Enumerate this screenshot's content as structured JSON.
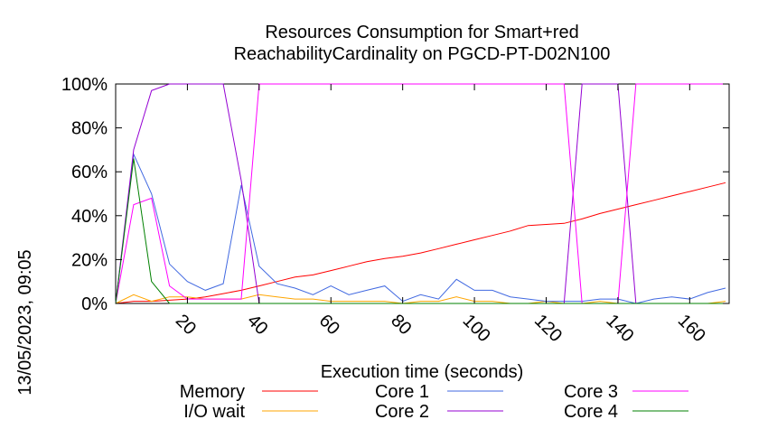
{
  "chart_data": {
    "type": "line",
    "title_lines": [
      "Resources Consumption for Smart+red",
      "ReachabilityCardinality on PGCD-PT-D02N100"
    ],
    "xlabel": "Execution time (seconds)",
    "ylabel": "",
    "side_label": "13/05/2023, 09:05",
    "xlim": [
      0,
      171
    ],
    "ylim": [
      0,
      100
    ],
    "x_ticks": [
      20,
      40,
      60,
      80,
      100,
      120,
      140,
      160
    ],
    "y_ticks": [
      0,
      20,
      40,
      60,
      80,
      100
    ],
    "y_tick_labels": [
      "0%",
      "20%",
      "40%",
      "60%",
      "80%",
      "100%"
    ],
    "grid": false,
    "legend_position": "bottom",
    "series": [
      {
        "name": "Memory",
        "color": "#ff0000",
        "points": [
          [
            0,
            0
          ],
          [
            5,
            1
          ],
          [
            10,
            1
          ],
          [
            15,
            1.5
          ],
          [
            20,
            2
          ],
          [
            25,
            3
          ],
          [
            30,
            4.5
          ],
          [
            35,
            6
          ],
          [
            40,
            8
          ],
          [
            45,
            10
          ],
          [
            50,
            12
          ],
          [
            55,
            13
          ],
          [
            60,
            15
          ],
          [
            65,
            17
          ],
          [
            70,
            19
          ],
          [
            75,
            20.5
          ],
          [
            80,
            21.5
          ],
          [
            85,
            23
          ],
          [
            90,
            25
          ],
          [
            95,
            27
          ],
          [
            100,
            29
          ],
          [
            105,
            31
          ],
          [
            110,
            33
          ],
          [
            115,
            35.5
          ],
          [
            120,
            36
          ],
          [
            125,
            36.5
          ],
          [
            130,
            38.5
          ],
          [
            135,
            41
          ],
          [
            140,
            43
          ],
          [
            145,
            45
          ],
          [
            150,
            47
          ],
          [
            155,
            49
          ],
          [
            160,
            51
          ],
          [
            165,
            53
          ],
          [
            170,
            55
          ]
        ]
      },
      {
        "name": "I/O wait",
        "color": "#ffa500",
        "points": [
          [
            0,
            0
          ],
          [
            5,
            4
          ],
          [
            10,
            1
          ],
          [
            15,
            3
          ],
          [
            20,
            3
          ],
          [
            25,
            2
          ],
          [
            30,
            2
          ],
          [
            35,
            2
          ],
          [
            40,
            4
          ],
          [
            45,
            3
          ],
          [
            50,
            2
          ],
          [
            55,
            2
          ],
          [
            60,
            1
          ],
          [
            65,
            1
          ],
          [
            70,
            1
          ],
          [
            75,
            1
          ],
          [
            80,
            0
          ],
          [
            85,
            1
          ],
          [
            90,
            1
          ],
          [
            95,
            3
          ],
          [
            100,
            1
          ],
          [
            105,
            1
          ],
          [
            110,
            0
          ],
          [
            115,
            0
          ],
          [
            120,
            1
          ],
          [
            125,
            0
          ],
          [
            130,
            0
          ],
          [
            135,
            1
          ],
          [
            140,
            0
          ],
          [
            145,
            0
          ],
          [
            150,
            0
          ],
          [
            155,
            0
          ],
          [
            160,
            0
          ],
          [
            165,
            0
          ],
          [
            170,
            1
          ]
        ]
      },
      {
        "name": "Core 1",
        "color": "#4169e1",
        "points": [
          [
            0,
            0
          ],
          [
            5,
            68
          ],
          [
            10,
            50
          ],
          [
            15,
            18
          ],
          [
            20,
            10
          ],
          [
            25,
            6
          ],
          [
            30,
            9
          ],
          [
            35,
            54
          ],
          [
            40,
            17
          ],
          [
            45,
            9
          ],
          [
            50,
            7
          ],
          [
            55,
            4
          ],
          [
            60,
            8
          ],
          [
            65,
            4
          ],
          [
            70,
            6
          ],
          [
            75,
            8
          ],
          [
            80,
            1
          ],
          [
            85,
            4
          ],
          [
            90,
            2
          ],
          [
            95,
            11
          ],
          [
            100,
            6
          ],
          [
            105,
            6
          ],
          [
            110,
            3
          ],
          [
            115,
            2
          ],
          [
            120,
            1
          ],
          [
            125,
            1
          ],
          [
            130,
            1
          ],
          [
            135,
            2
          ],
          [
            140,
            2
          ],
          [
            145,
            0
          ],
          [
            150,
            2
          ],
          [
            155,
            3
          ],
          [
            160,
            2
          ],
          [
            165,
            5
          ],
          [
            170,
            7
          ]
        ]
      },
      {
        "name": "Core 2",
        "color": "#9400d3",
        "points": [
          [
            0,
            0
          ],
          [
            5,
            70
          ],
          [
            10,
            97
          ],
          [
            15,
            100
          ],
          [
            20,
            100
          ],
          [
            25,
            100
          ],
          [
            30,
            100
          ],
          [
            35,
            56
          ],
          [
            40,
            0
          ],
          [
            45,
            0
          ],
          [
            50,
            0
          ],
          [
            55,
            0
          ],
          [
            60,
            0
          ],
          [
            65,
            0
          ],
          [
            70,
            0
          ],
          [
            75,
            0
          ],
          [
            80,
            0
          ],
          [
            85,
            0
          ],
          [
            90,
            0
          ],
          [
            95,
            0
          ],
          [
            100,
            0
          ],
          [
            105,
            0
          ],
          [
            110,
            0
          ],
          [
            115,
            0
          ],
          [
            120,
            0
          ],
          [
            125,
            0
          ],
          [
            130,
            100
          ],
          [
            135,
            100
          ],
          [
            140,
            100
          ],
          [
            145,
            0
          ],
          [
            150,
            0
          ],
          [
            155,
            0
          ],
          [
            160,
            0
          ],
          [
            165,
            0
          ],
          [
            170,
            0
          ]
        ]
      },
      {
        "name": "Core 3",
        "color": "#ff00ff",
        "points": [
          [
            0,
            0
          ],
          [
            5,
            45
          ],
          [
            10,
            48
          ],
          [
            15,
            8
          ],
          [
            20,
            2
          ],
          [
            25,
            2
          ],
          [
            30,
            2
          ],
          [
            35,
            2
          ],
          [
            40,
            100
          ],
          [
            45,
            100
          ],
          [
            50,
            100
          ],
          [
            55,
            100
          ],
          [
            60,
            100
          ],
          [
            65,
            100
          ],
          [
            70,
            100
          ],
          [
            75,
            100
          ],
          [
            80,
            100
          ],
          [
            85,
            100
          ],
          [
            90,
            100
          ],
          [
            95,
            100
          ],
          [
            100,
            100
          ],
          [
            105,
            100
          ],
          [
            110,
            100
          ],
          [
            115,
            100
          ],
          [
            120,
            100
          ],
          [
            125,
            100
          ],
          [
            130,
            0
          ],
          [
            135,
            0
          ],
          [
            140,
            0
          ],
          [
            145,
            100
          ],
          [
            150,
            100
          ],
          [
            155,
            100
          ],
          [
            160,
            100
          ],
          [
            165,
            100
          ],
          [
            170,
            100
          ]
        ]
      },
      {
        "name": "Core 4",
        "color": "#008000",
        "points": [
          [
            0,
            0
          ],
          [
            5,
            66
          ],
          [
            10,
            10
          ],
          [
            15,
            0
          ],
          [
            20,
            0
          ],
          [
            25,
            0
          ],
          [
            30,
            0
          ],
          [
            35,
            0
          ],
          [
            40,
            0
          ],
          [
            45,
            0
          ],
          [
            50,
            0
          ],
          [
            55,
            0
          ],
          [
            60,
            0
          ],
          [
            65,
            0
          ],
          [
            70,
            0
          ],
          [
            75,
            0
          ],
          [
            80,
            0
          ],
          [
            85,
            0
          ],
          [
            90,
            0
          ],
          [
            95,
            0
          ],
          [
            100,
            0
          ],
          [
            105,
            0
          ],
          [
            110,
            0
          ],
          [
            115,
            0
          ],
          [
            120,
            0
          ],
          [
            125,
            0
          ],
          [
            130,
            0
          ],
          [
            135,
            0
          ],
          [
            140,
            0
          ],
          [
            145,
            0
          ],
          [
            150,
            0
          ],
          [
            155,
            0
          ],
          [
            160,
            0
          ],
          [
            165,
            0
          ],
          [
            170,
            0
          ]
        ]
      }
    ]
  }
}
